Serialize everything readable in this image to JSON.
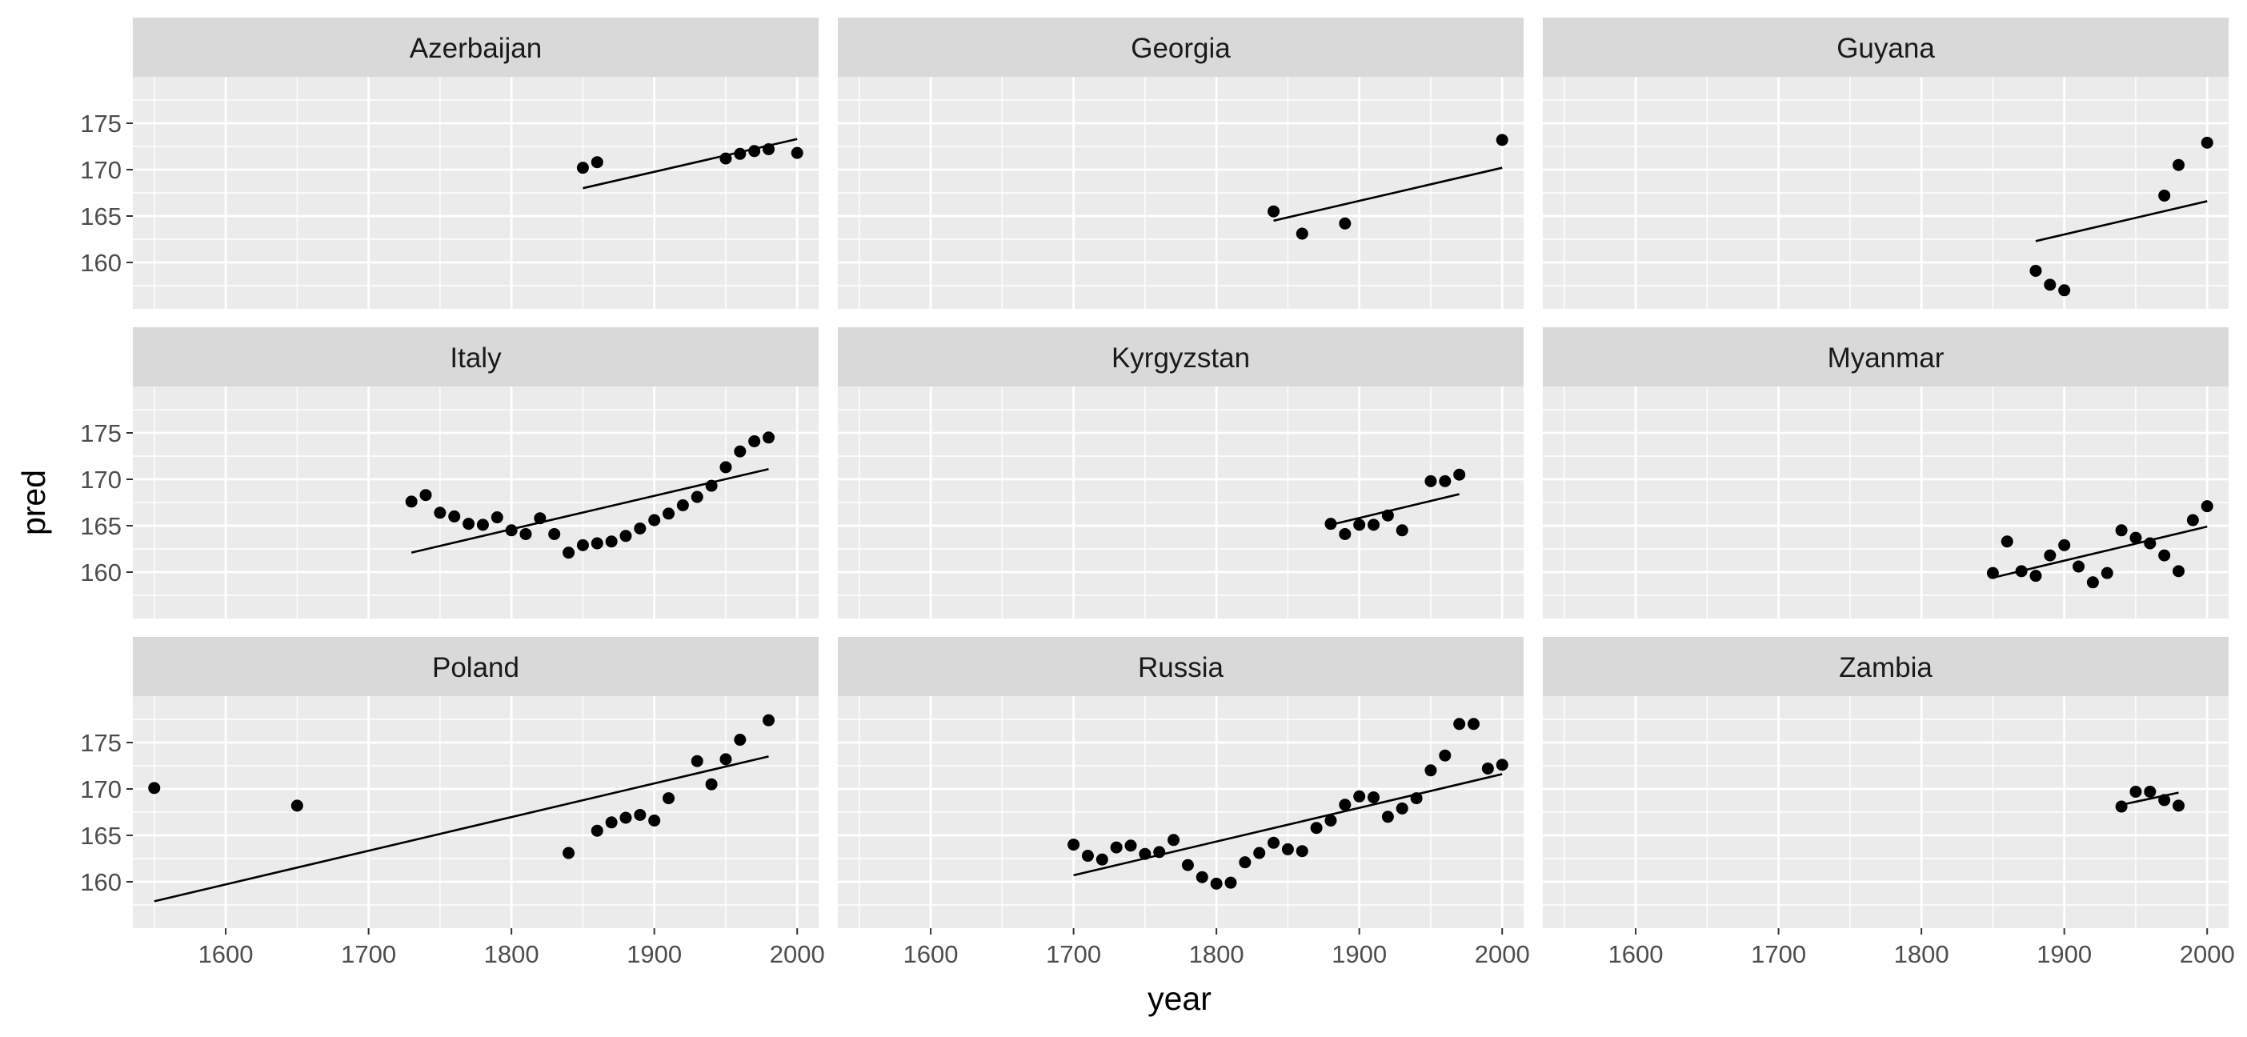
{
  "chart_data": {
    "type": "scatter",
    "layout": "facet-grid 3x3",
    "xlabel": "year",
    "ylabel": "pred",
    "xlim": [
      1535,
      2015
    ],
    "ylim": [
      155,
      180
    ],
    "x_ticks": [
      1600,
      1700,
      1800,
      1900,
      2000
    ],
    "y_ticks": [
      160,
      165,
      170,
      175
    ],
    "grid": true,
    "colors": {
      "panel_bg": "#ebebeb",
      "strip_bg": "#d9d9d9",
      "grid": "#ffffff",
      "points": "#000000",
      "line": "#000000",
      "tick_text": "#4d4d4d"
    },
    "panels": [
      {
        "name": "Azerbaijan",
        "points": [
          [
            1850,
            170.2
          ],
          [
            1860,
            170.8
          ],
          [
            1950,
            171.2
          ],
          [
            1960,
            171.7
          ],
          [
            1970,
            172.0
          ],
          [
            1980,
            172.2
          ],
          [
            2000,
            171.8
          ]
        ],
        "fit": [
          [
            1850,
            168.0
          ],
          [
            2000,
            173.3
          ]
        ]
      },
      {
        "name": "Georgia",
        "points": [
          [
            1840,
            165.5
          ],
          [
            1860,
            163.1
          ],
          [
            1890,
            164.2
          ],
          [
            2000,
            173.2
          ]
        ],
        "fit": [
          [
            1840,
            164.5
          ],
          [
            2000,
            170.2
          ]
        ]
      },
      {
        "name": "Guyana",
        "points": [
          [
            1880,
            159.1
          ],
          [
            1890,
            157.6
          ],
          [
            1900,
            157.0
          ],
          [
            1970,
            167.2
          ],
          [
            1980,
            170.5
          ],
          [
            2000,
            172.9
          ]
        ],
        "fit": [
          [
            1880,
            162.3
          ],
          [
            2000,
            166.6
          ]
        ]
      },
      {
        "name": "Italy",
        "points": [
          [
            1730,
            167.6
          ],
          [
            1740,
            168.3
          ],
          [
            1750,
            166.4
          ],
          [
            1760,
            166.0
          ],
          [
            1770,
            165.2
          ],
          [
            1780,
            165.1
          ],
          [
            1790,
            165.9
          ],
          [
            1800,
            164.5
          ],
          [
            1810,
            164.1
          ],
          [
            1820,
            165.8
          ],
          [
            1830,
            164.1
          ],
          [
            1840,
            162.1
          ],
          [
            1850,
            162.9
          ],
          [
            1860,
            163.1
          ],
          [
            1870,
            163.3
          ],
          [
            1880,
            163.9
          ],
          [
            1890,
            164.7
          ],
          [
            1900,
            165.6
          ],
          [
            1910,
            166.3
          ],
          [
            1920,
            167.2
          ],
          [
            1930,
            168.1
          ],
          [
            1940,
            169.3
          ],
          [
            1950,
            171.3
          ],
          [
            1960,
            173.0
          ],
          [
            1970,
            174.1
          ],
          [
            1980,
            174.5
          ]
        ],
        "fit": [
          [
            1730,
            162.1
          ],
          [
            1980,
            171.1
          ]
        ]
      },
      {
        "name": "Kyrgyzstan",
        "points": [
          [
            1880,
            165.2
          ],
          [
            1890,
            164.1
          ],
          [
            1900,
            165.1
          ],
          [
            1910,
            165.1
          ],
          [
            1920,
            166.1
          ],
          [
            1930,
            164.5
          ],
          [
            1950,
            169.8
          ],
          [
            1960,
            169.8
          ],
          [
            1970,
            170.5
          ]
        ],
        "fit": [
          [
            1880,
            165.1
          ],
          [
            1970,
            168.4
          ]
        ]
      },
      {
        "name": "Myanmar",
        "points": [
          [
            1850,
            159.9
          ],
          [
            1860,
            163.3
          ],
          [
            1870,
            160.1
          ],
          [
            1880,
            159.6
          ],
          [
            1890,
            161.8
          ],
          [
            1900,
            162.9
          ],
          [
            1910,
            160.6
          ],
          [
            1920,
            158.9
          ],
          [
            1930,
            159.9
          ],
          [
            1940,
            164.5
          ],
          [
            1950,
            163.7
          ],
          [
            1960,
            163.1
          ],
          [
            1970,
            161.8
          ],
          [
            1980,
            160.1
          ],
          [
            1990,
            165.6
          ],
          [
            2000,
            167.1
          ]
        ],
        "fit": [
          [
            1850,
            159.4
          ],
          [
            2000,
            164.9
          ]
        ]
      },
      {
        "name": "Poland",
        "points": [
          [
            1550,
            170.1
          ],
          [
            1650,
            168.2
          ],
          [
            1840,
            163.1
          ],
          [
            1860,
            165.5
          ],
          [
            1870,
            166.4
          ],
          [
            1880,
            166.9
          ],
          [
            1890,
            167.2
          ],
          [
            1900,
            166.6
          ],
          [
            1910,
            169.0
          ],
          [
            1930,
            173.0
          ],
          [
            1940,
            170.5
          ],
          [
            1950,
            173.2
          ],
          [
            1960,
            175.3
          ],
          [
            1980,
            177.4
          ]
        ],
        "fit": [
          [
            1550,
            157.9
          ],
          [
            1980,
            173.5
          ]
        ]
      },
      {
        "name": "Russia",
        "points": [
          [
            1700,
            164.0
          ],
          [
            1710,
            162.8
          ],
          [
            1720,
            162.4
          ],
          [
            1730,
            163.7
          ],
          [
            1740,
            163.9
          ],
          [
            1750,
            163.0
          ],
          [
            1760,
            163.2
          ],
          [
            1770,
            164.5
          ],
          [
            1780,
            161.8
          ],
          [
            1790,
            160.5
          ],
          [
            1800,
            159.8
          ],
          [
            1810,
            159.9
          ],
          [
            1820,
            162.1
          ],
          [
            1830,
            163.1
          ],
          [
            1840,
            164.2
          ],
          [
            1850,
            163.5
          ],
          [
            1860,
            163.3
          ],
          [
            1870,
            165.8
          ],
          [
            1880,
            166.6
          ],
          [
            1890,
            168.3
          ],
          [
            1900,
            169.2
          ],
          [
            1910,
            169.1
          ],
          [
            1920,
            167.0
          ],
          [
            1930,
            167.9
          ],
          [
            1940,
            169.0
          ],
          [
            1950,
            172.0
          ],
          [
            1960,
            173.6
          ],
          [
            1970,
            177.0
          ],
          [
            1980,
            177.0
          ],
          [
            1990,
            172.2
          ],
          [
            2000,
            172.6
          ]
        ],
        "fit": [
          [
            1700,
            160.7
          ],
          [
            2000,
            171.6
          ]
        ]
      },
      {
        "name": "Zambia",
        "points": [
          [
            1940,
            168.1
          ],
          [
            1950,
            169.7
          ],
          [
            1960,
            169.7
          ],
          [
            1970,
            168.8
          ],
          [
            1980,
            168.2
          ]
        ],
        "fit": [
          [
            1940,
            168.3
          ],
          [
            1980,
            169.6
          ]
        ]
      }
    ]
  }
}
